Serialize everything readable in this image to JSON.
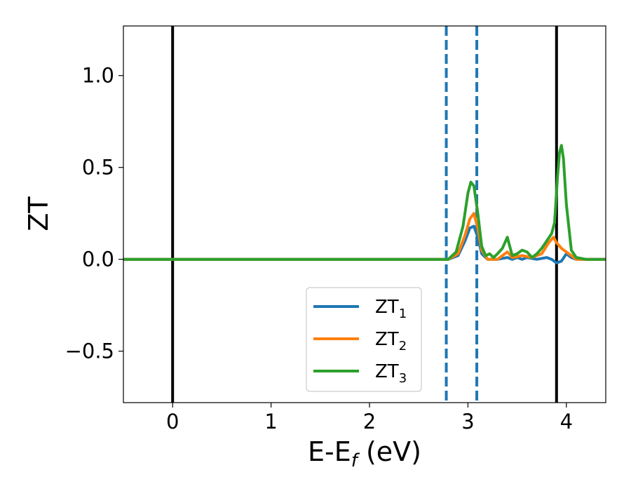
{
  "chart_data": {
    "type": "line",
    "xlabel": {
      "main": "E-E",
      "sub": "f",
      "suffix": " (eV)"
    },
    "ylabel": "ZT",
    "xlim": [
      -0.5,
      4.4
    ],
    "ylim": [
      -0.78,
      1.27
    ],
    "xticks": [
      0,
      1,
      2,
      3,
      4
    ],
    "xtick_labels": [
      "0",
      "1",
      "2",
      "3",
      "4"
    ],
    "yticks": [
      -0.5,
      0.0,
      0.5,
      1.0
    ],
    "ytick_labels": [
      "−0.5",
      "0.0",
      "0.5",
      "1.0"
    ],
    "grid": false,
    "legend_position": "lower-center",
    "vertical_lines": [
      {
        "x": 0.0,
        "style": "solid",
        "color": "#000000"
      },
      {
        "x": 3.9,
        "style": "solid",
        "color": "#000000"
      },
      {
        "x": 2.78,
        "style": "dashed",
        "color": "#1f77b4"
      },
      {
        "x": 3.09,
        "style": "dashed",
        "color": "#1f77b4"
      }
    ],
    "series": [
      {
        "name": {
          "base": "ZT",
          "sub": "1"
        },
        "color": "#1f77b4",
        "x": [
          -0.5,
          2.8,
          2.9,
          2.97,
          3.02,
          3.06,
          3.1,
          3.14,
          3.2,
          3.3,
          3.4,
          3.45,
          3.5,
          3.55,
          3.6,
          3.7,
          3.8,
          3.85,
          3.9,
          3.95,
          4.0,
          4.05,
          4.1,
          4.4
        ],
        "y": [
          0.0,
          0.0,
          0.02,
          0.1,
          0.17,
          0.18,
          0.12,
          0.03,
          0.0,
          0.0,
          0.01,
          0.0,
          0.01,
          0.0,
          0.01,
          0.0,
          0.01,
          0.0,
          -0.02,
          -0.01,
          0.03,
          0.01,
          0.0,
          0.0
        ]
      },
      {
        "name": {
          "base": "ZT",
          "sub": "2"
        },
        "color": "#ff7f0e",
        "x": [
          -0.5,
          2.8,
          2.9,
          2.97,
          3.02,
          3.06,
          3.1,
          3.14,
          3.2,
          3.3,
          3.35,
          3.4,
          3.45,
          3.55,
          3.65,
          3.75,
          3.82,
          3.87,
          3.9,
          3.95,
          4.0,
          4.05,
          4.1,
          4.4
        ],
        "y": [
          0.0,
          0.0,
          0.03,
          0.13,
          0.22,
          0.25,
          0.17,
          0.05,
          0.0,
          0.0,
          0.02,
          0.04,
          0.01,
          0.02,
          0.01,
          0.03,
          0.09,
          0.12,
          0.09,
          0.06,
          0.04,
          0.02,
          0.0,
          0.0
        ]
      },
      {
        "name": {
          "base": "ZT",
          "sub": "3"
        },
        "color": "#2ca02c",
        "x": [
          -0.5,
          2.8,
          2.88,
          2.95,
          3.0,
          3.03,
          3.06,
          3.1,
          3.14,
          3.18,
          3.22,
          3.26,
          3.3,
          3.35,
          3.4,
          3.45,
          3.5,
          3.55,
          3.6,
          3.65,
          3.7,
          3.75,
          3.8,
          3.85,
          3.88,
          3.91,
          3.93,
          3.95,
          3.97,
          4.0,
          4.05,
          4.1,
          4.2,
          4.4
        ],
        "y": [
          0.0,
          0.0,
          0.04,
          0.18,
          0.36,
          0.42,
          0.4,
          0.25,
          0.07,
          0.02,
          0.03,
          0.01,
          0.03,
          0.06,
          0.12,
          0.02,
          0.03,
          0.05,
          0.04,
          0.01,
          0.03,
          0.06,
          0.1,
          0.14,
          0.2,
          0.45,
          0.58,
          0.62,
          0.55,
          0.3,
          0.05,
          0.01,
          0.0,
          0.0
        ]
      }
    ]
  }
}
